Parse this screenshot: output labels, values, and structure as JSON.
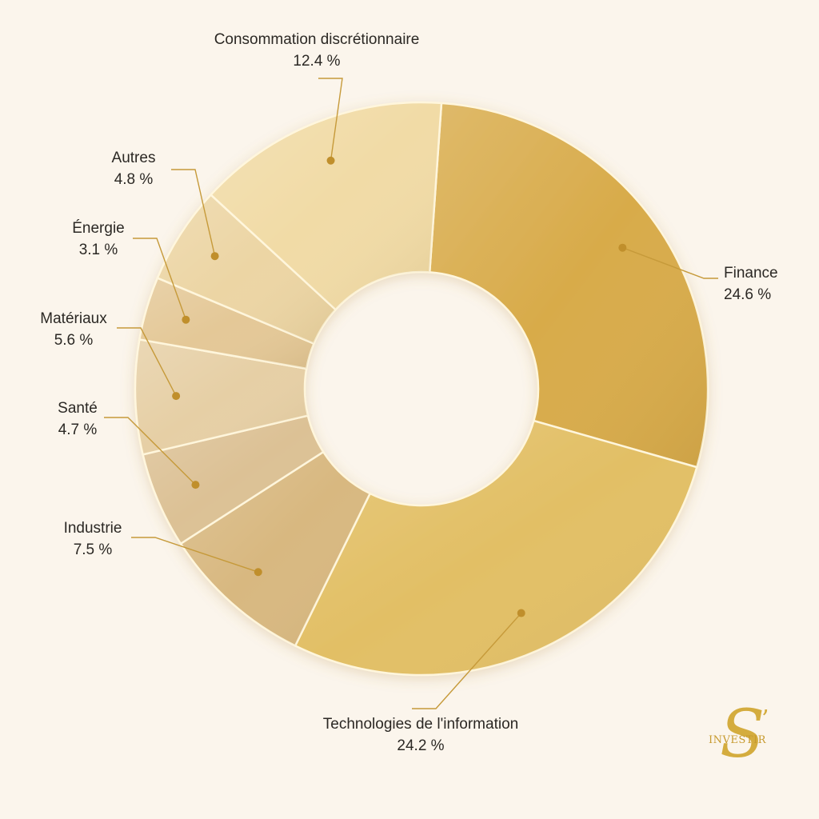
{
  "chart_data": {
    "type": "pie",
    "donut": true,
    "unit": "%",
    "slices": [
      {
        "label": "Finance",
        "value": 24.6,
        "display": "24.6 %",
        "color": "#d8ab4a"
      },
      {
        "label": "Technologies de l'information",
        "value": 24.2,
        "display": "24.2 %",
        "color": "#e2bf65"
      },
      {
        "label": "Industrie",
        "value": 7.5,
        "display": "7.5 %",
        "color": "#d8b880"
      },
      {
        "label": "Santé",
        "value": 4.7,
        "display": "4.7 %",
        "color": "#dcc195"
      },
      {
        "label": "Matériaux",
        "value": 5.6,
        "display": "5.6 %",
        "color": "#e6cfa5"
      },
      {
        "label": "Énergie",
        "value": 3.1,
        "display": "3.1 %",
        "color": "#e4c897"
      },
      {
        "label": "Autres",
        "value": 4.8,
        "display": "4.8 %",
        "color": "#ecd5a4"
      },
      {
        "label": "Consommation discrétionnaire",
        "value": 12.4,
        "display": "12.4 %",
        "color": "#f1dba6"
      }
    ]
  },
  "logo": {
    "letter": "S",
    "apostrophe": "’",
    "text": "INVESTIR",
    "color": "#d4ac3e"
  }
}
